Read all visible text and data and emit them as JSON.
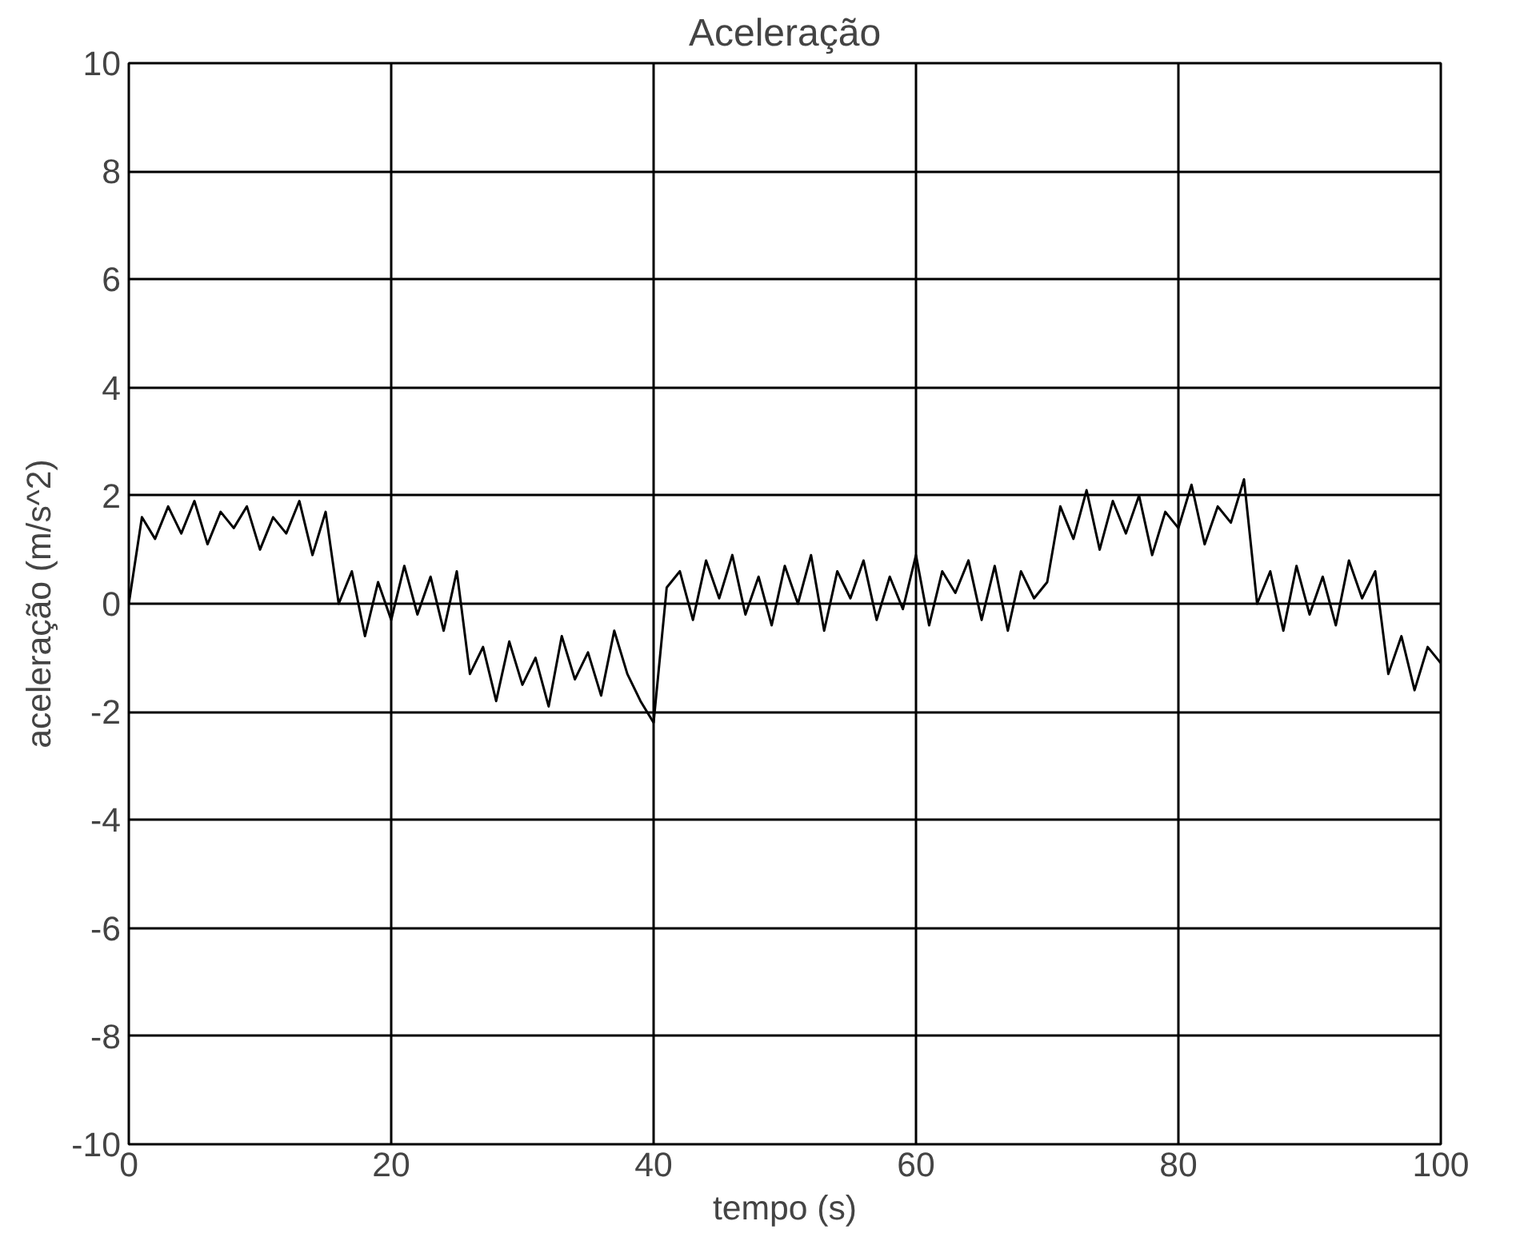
{
  "chart_data": {
    "type": "line",
    "title": "Aceleração",
    "xlabel": "tempo (s)",
    "ylabel": "aceleração (m/s^2)",
    "x": [
      0,
      1,
      2,
      3,
      4,
      5,
      6,
      7,
      8,
      9,
      10,
      11,
      12,
      13,
      14,
      15,
      16,
      17,
      18,
      19,
      20,
      21,
      22,
      23,
      24,
      25,
      26,
      27,
      28,
      29,
      30,
      31,
      32,
      33,
      34,
      35,
      36,
      37,
      38,
      39,
      40,
      41,
      42,
      43,
      44,
      45,
      46,
      47,
      48,
      49,
      50,
      51,
      52,
      53,
      54,
      55,
      56,
      57,
      58,
      59,
      60,
      61,
      62,
      63,
      64,
      65,
      66,
      67,
      68,
      69,
      70,
      71,
      72,
      73,
      74,
      75,
      76,
      77,
      78,
      79,
      80,
      81,
      82,
      83,
      84,
      85,
      86,
      87,
      88,
      89,
      90,
      91,
      92,
      93,
      94,
      95,
      96,
      97,
      98,
      99,
      100
    ],
    "series": [
      {
        "color": "#000000",
        "values": [
          0,
          1.6,
          1.2,
          1.8,
          1.3,
          1.9,
          1.1,
          1.7,
          1.4,
          1.8,
          1.0,
          1.6,
          1.3,
          1.9,
          0.9,
          1.7,
          0.0,
          0.6,
          -0.6,
          0.4,
          -0.3,
          0.7,
          -0.2,
          0.5,
          -0.5,
          0.6,
          -1.3,
          -0.8,
          -1.8,
          -0.7,
          -1.5,
          -1.0,
          -1.9,
          -0.6,
          -1.4,
          -0.9,
          -1.7,
          -0.5,
          -1.3,
          -1.8,
          -2.2,
          0.3,
          0.6,
          -0.3,
          0.8,
          0.1,
          0.9,
          -0.2,
          0.5,
          -0.4,
          0.7,
          0.0,
          0.9,
          -0.5,
          0.6,
          0.1,
          0.8,
          -0.3,
          0.5,
          -0.1,
          0.9,
          -0.4,
          0.6,
          0.2,
          0.8,
          -0.3,
          0.7,
          -0.5,
          0.6,
          0.1,
          0.4,
          1.8,
          1.2,
          2.1,
          1.0,
          1.9,
          1.3,
          2.0,
          0.9,
          1.7,
          1.4,
          2.2,
          1.1,
          1.8,
          1.5,
          2.3,
          0.0,
          0.6,
          -0.5,
          0.7,
          -0.2,
          0.5,
          -0.4,
          0.8,
          0.1,
          0.6,
          -1.3,
          -0.6,
          -1.6,
          -0.8,
          -1.1
        ]
      }
    ],
    "xlim": [
      0,
      100
    ],
    "ylim": [
      -10,
      10
    ],
    "xticks": [
      0,
      20,
      40,
      60,
      80,
      100
    ],
    "yticks": [
      -10,
      -8,
      -6,
      -4,
      -2,
      0,
      2,
      4,
      6,
      8,
      10
    ],
    "grid": true
  }
}
